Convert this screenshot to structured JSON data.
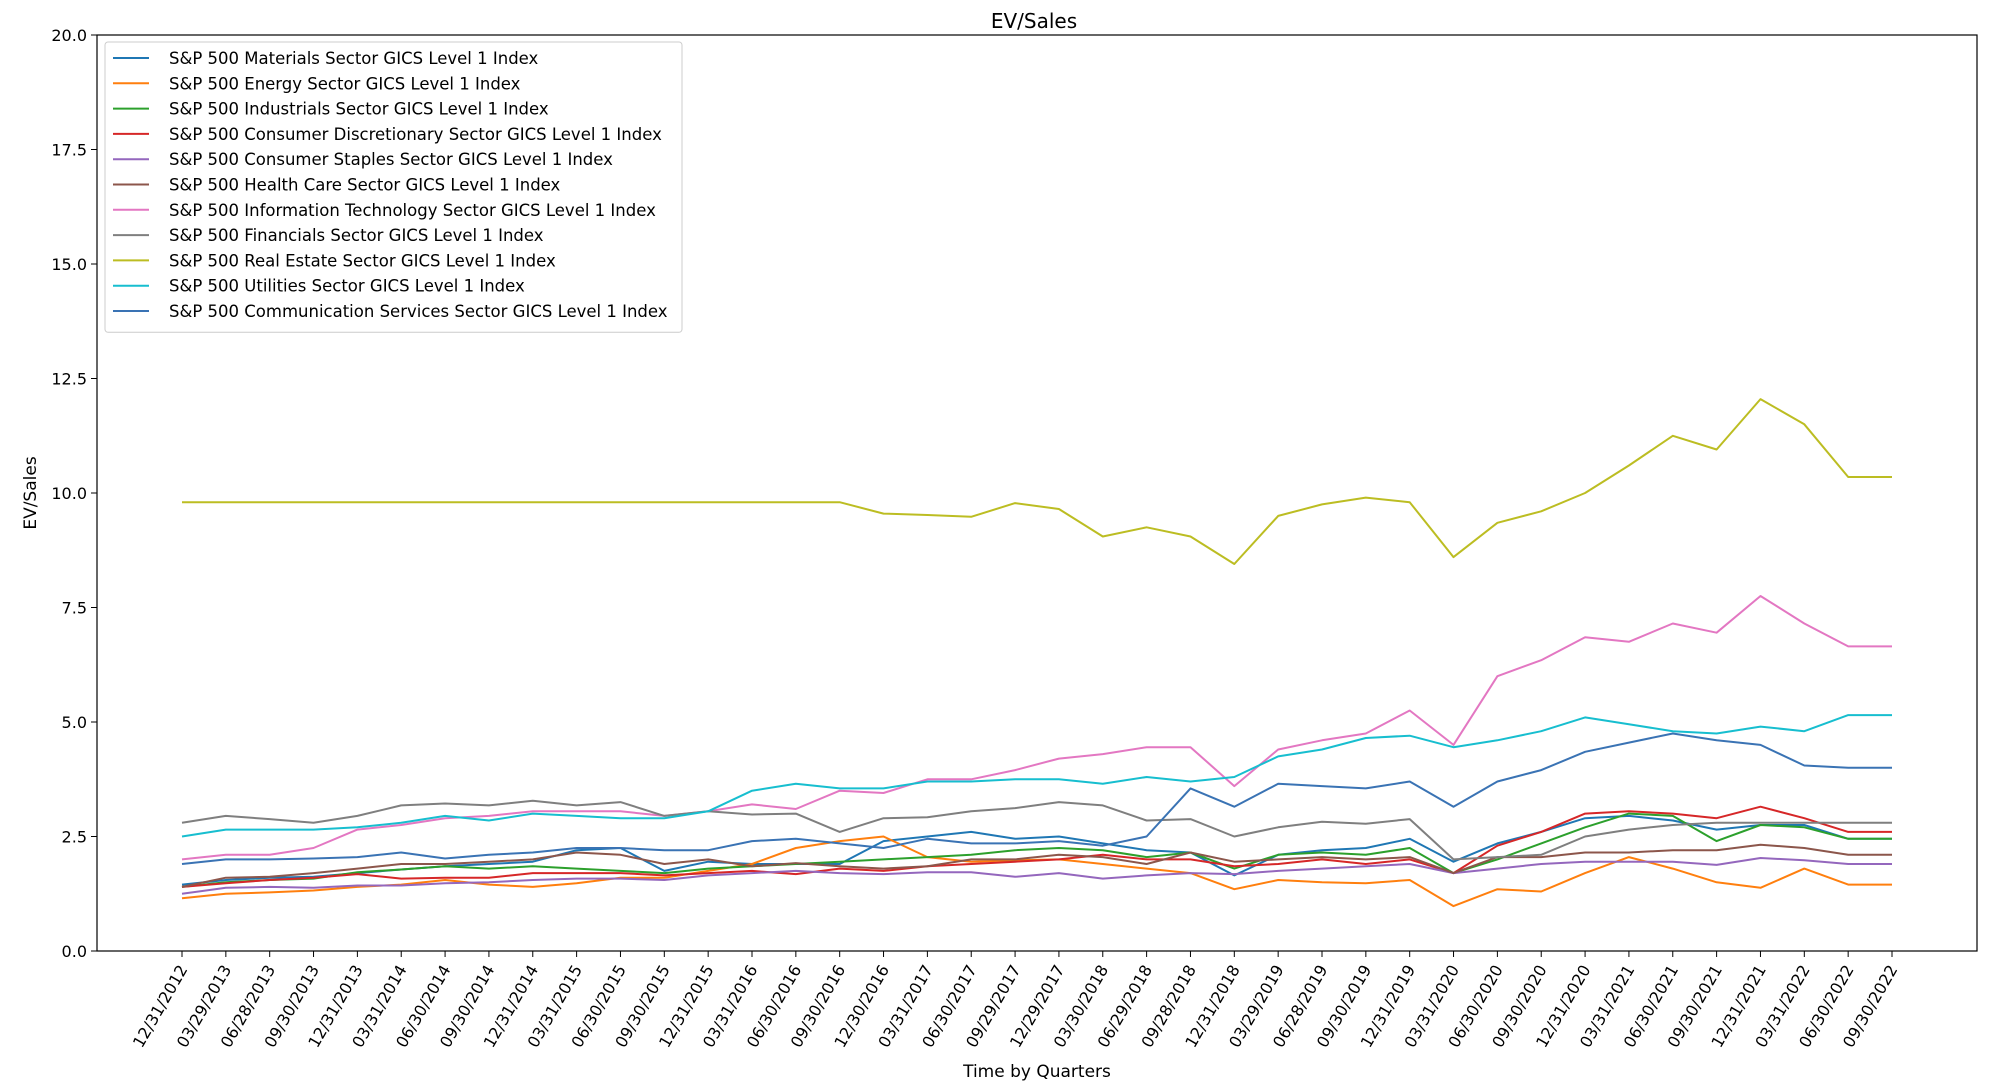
{
  "chart_data": {
    "type": "line",
    "title": "EV/Sales",
    "xlabel": "Time by Quarters",
    "ylabel": "EV/Sales",
    "ylim": [
      0,
      20
    ],
    "yticks": [
      "0.0",
      "2.5",
      "5.0",
      "7.5",
      "10.0",
      "12.5",
      "15.0",
      "17.5",
      "20.0"
    ],
    "grid": false,
    "legend_position": "top-left",
    "categories": [
      "12/31/2012",
      "03/29/2013",
      "06/28/2013",
      "09/30/2013",
      "12/31/2013",
      "03/31/2014",
      "06/30/2014",
      "09/30/2014",
      "12/31/2014",
      "03/31/2015",
      "06/30/2015",
      "09/30/2015",
      "12/31/2015",
      "03/31/2016",
      "06/30/2016",
      "09/30/2016",
      "12/30/2016",
      "03/31/2017",
      "06/30/2017",
      "09/29/2017",
      "12/29/2017",
      "03/30/2018",
      "06/29/2018",
      "09/28/2018",
      "12/31/2018",
      "03/29/2019",
      "06/28/2019",
      "09/30/2019",
      "12/31/2019",
      "03/31/2020",
      "06/30/2020",
      "09/30/2020",
      "12/31/2020",
      "03/31/2021",
      "06/30/2021",
      "09/30/2021",
      "12/31/2021",
      "03/31/2022",
      "06/30/2022",
      "09/30/2022"
    ],
    "series": [
      {
        "name": "S&P 500 Materials Sector GICS Level 1 Index",
        "color": "#1f77b4",
        "values": [
          1.45,
          1.55,
          1.6,
          1.62,
          1.7,
          1.78,
          1.85,
          1.9,
          1.95,
          2.2,
          2.25,
          1.75,
          1.95,
          1.9,
          1.9,
          1.9,
          2.4,
          2.5,
          2.6,
          2.45,
          2.5,
          2.35,
          2.2,
          2.15,
          1.65,
          2.1,
          2.2,
          2.25,
          2.45,
          1.95,
          2.35,
          2.6,
          2.9,
          2.95,
          2.85,
          2.65,
          2.75,
          2.75,
          2.45,
          2.45
        ]
      },
      {
        "name": "S&P 500 Energy Sector GICS Level 1 Index",
        "color": "#ff7f0e",
        "values": [
          1.15,
          1.25,
          1.28,
          1.32,
          1.4,
          1.45,
          1.55,
          1.45,
          1.4,
          1.48,
          1.6,
          1.6,
          1.75,
          1.9,
          2.25,
          2.4,
          2.5,
          2.05,
          1.95,
          1.98,
          2.0,
          1.9,
          1.8,
          1.7,
          1.35,
          1.55,
          1.5,
          1.48,
          1.55,
          0.98,
          1.35,
          1.3,
          1.7,
          2.05,
          1.8,
          1.5,
          1.38,
          1.8,
          1.45,
          1.45
        ]
      },
      {
        "name": "S&P 500 Industrials Sector GICS Level 1 Index",
        "color": "#2ca02c",
        "values": [
          1.4,
          1.5,
          1.55,
          1.58,
          1.72,
          1.78,
          1.85,
          1.8,
          1.85,
          1.8,
          1.75,
          1.7,
          1.8,
          1.85,
          1.9,
          1.95,
          2.0,
          2.05,
          2.1,
          2.2,
          2.25,
          2.2,
          2.05,
          2.15,
          1.8,
          2.1,
          2.15,
          2.1,
          2.25,
          1.7,
          2.0,
          2.35,
          2.7,
          3.0,
          2.95,
          2.4,
          2.75,
          2.7,
          2.45,
          2.45
        ]
      },
      {
        "name": "S&P 500 Consumer Discretionary Sector GICS Level 1 Index",
        "color": "#d62728",
        "values": [
          1.4,
          1.48,
          1.55,
          1.6,
          1.68,
          1.58,
          1.6,
          1.6,
          1.7,
          1.7,
          1.7,
          1.65,
          1.7,
          1.75,
          1.68,
          1.8,
          1.75,
          1.85,
          1.9,
          1.95,
          2.0,
          2.1,
          2.0,
          2.0,
          1.85,
          1.9,
          2.0,
          1.9,
          2.0,
          1.7,
          2.3,
          2.6,
          3.0,
          3.05,
          3.0,
          2.9,
          3.15,
          2.9,
          2.6,
          2.6
        ]
      },
      {
        "name": "S&P 500 Consumer Staples Sector GICS Level 1 Index",
        "color": "#9467bd",
        "values": [
          1.25,
          1.38,
          1.4,
          1.38,
          1.43,
          1.43,
          1.48,
          1.5,
          1.55,
          1.58,
          1.58,
          1.55,
          1.65,
          1.7,
          1.75,
          1.7,
          1.68,
          1.72,
          1.72,
          1.62,
          1.7,
          1.58,
          1.65,
          1.7,
          1.68,
          1.75,
          1.8,
          1.85,
          1.9,
          1.7,
          1.8,
          1.9,
          1.95,
          1.95,
          1.95,
          1.88,
          2.03,
          1.98,
          1.9,
          1.9
        ]
      },
      {
        "name": "S&P 500 Health Care Sector GICS Level 1 Index",
        "color": "#8c564b",
        "values": [
          1.4,
          1.6,
          1.62,
          1.7,
          1.8,
          1.9,
          1.9,
          1.95,
          2.0,
          2.15,
          2.1,
          1.9,
          2.0,
          1.85,
          1.92,
          1.85,
          1.8,
          1.85,
          2.0,
          2.0,
          2.1,
          2.05,
          1.9,
          2.15,
          1.95,
          2.0,
          2.05,
          2.0,
          2.05,
          1.7,
          2.05,
          2.05,
          2.15,
          2.15,
          2.2,
          2.2,
          2.32,
          2.25,
          2.1,
          2.1
        ]
      },
      {
        "name": "S&P 500 Information Technology Sector GICS Level 1 Index",
        "color": "#e377c2",
        "values": [
          2.0,
          2.1,
          2.1,
          2.25,
          2.65,
          2.75,
          2.9,
          2.95,
          3.05,
          3.05,
          3.05,
          2.95,
          3.05,
          3.2,
          3.1,
          3.5,
          3.45,
          3.75,
          3.75,
          3.95,
          4.2,
          4.3,
          4.45,
          4.45,
          3.6,
          4.4,
          4.6,
          4.75,
          5.25,
          4.5,
          6.0,
          6.35,
          6.85,
          6.75,
          7.15,
          6.95,
          7.75,
          7.15,
          6.65,
          6.65
        ]
      },
      {
        "name": "S&P 500 Financials Sector GICS Level 1 Index",
        "color": "#7f7f7f",
        "values": [
          2.8,
          2.95,
          2.88,
          2.8,
          2.95,
          3.18,
          3.22,
          3.18,
          3.28,
          3.18,
          3.25,
          2.95,
          3.05,
          2.98,
          3.0,
          2.6,
          2.9,
          2.92,
          3.05,
          3.12,
          3.25,
          3.18,
          2.85,
          2.88,
          2.5,
          2.7,
          2.82,
          2.78,
          2.88,
          2.0,
          2.05,
          2.1,
          2.5,
          2.65,
          2.75,
          2.8,
          2.8,
          2.8,
          2.8,
          2.8
        ]
      },
      {
        "name": "S&P 500 Real Estate Sector GICS Level 1 Index",
        "color": "#bcbd22",
        "values": [
          9.8,
          9.8,
          9.8,
          9.8,
          9.8,
          9.8,
          9.8,
          9.8,
          9.8,
          9.8,
          9.8,
          9.8,
          9.8,
          9.8,
          9.8,
          9.8,
          9.55,
          9.52,
          9.48,
          9.78,
          9.65,
          9.05,
          9.25,
          9.05,
          8.45,
          9.5,
          9.75,
          9.9,
          9.8,
          8.6,
          9.35,
          9.6,
          10.0,
          10.6,
          11.25,
          10.95,
          12.05,
          11.5,
          10.35,
          10.35
        ]
      },
      {
        "name": "S&P 500 Utilities Sector GICS Level 1 Index",
        "color": "#17becf",
        "values": [
          2.5,
          2.65,
          2.65,
          2.65,
          2.7,
          2.8,
          2.95,
          2.85,
          3.0,
          2.95,
          2.9,
          2.9,
          3.05,
          3.5,
          3.65,
          3.55,
          3.55,
          3.7,
          3.7,
          3.75,
          3.75,
          3.65,
          3.8,
          3.7,
          3.8,
          4.25,
          4.4,
          4.65,
          4.7,
          4.45,
          4.6,
          4.8,
          5.1,
          4.95,
          4.8,
          4.75,
          4.9,
          4.8,
          5.15,
          5.15
        ]
      },
      {
        "name": "S&P 500 Communication Services Sector GICS Level 1 Index",
        "color": "#3a73b4",
        "values": [
          1.9,
          2.0,
          2.0,
          2.02,
          2.05,
          2.15,
          2.02,
          2.1,
          2.15,
          2.25,
          2.25,
          2.2,
          2.2,
          2.4,
          2.45,
          2.35,
          2.25,
          2.45,
          2.35,
          2.35,
          2.4,
          2.3,
          2.5,
          3.55,
          3.15,
          3.65,
          3.6,
          3.55,
          3.7,
          3.15,
          3.7,
          3.95,
          4.35,
          4.55,
          4.75,
          4.6,
          4.5,
          4.05,
          4.0,
          4.0
        ]
      }
    ]
  }
}
